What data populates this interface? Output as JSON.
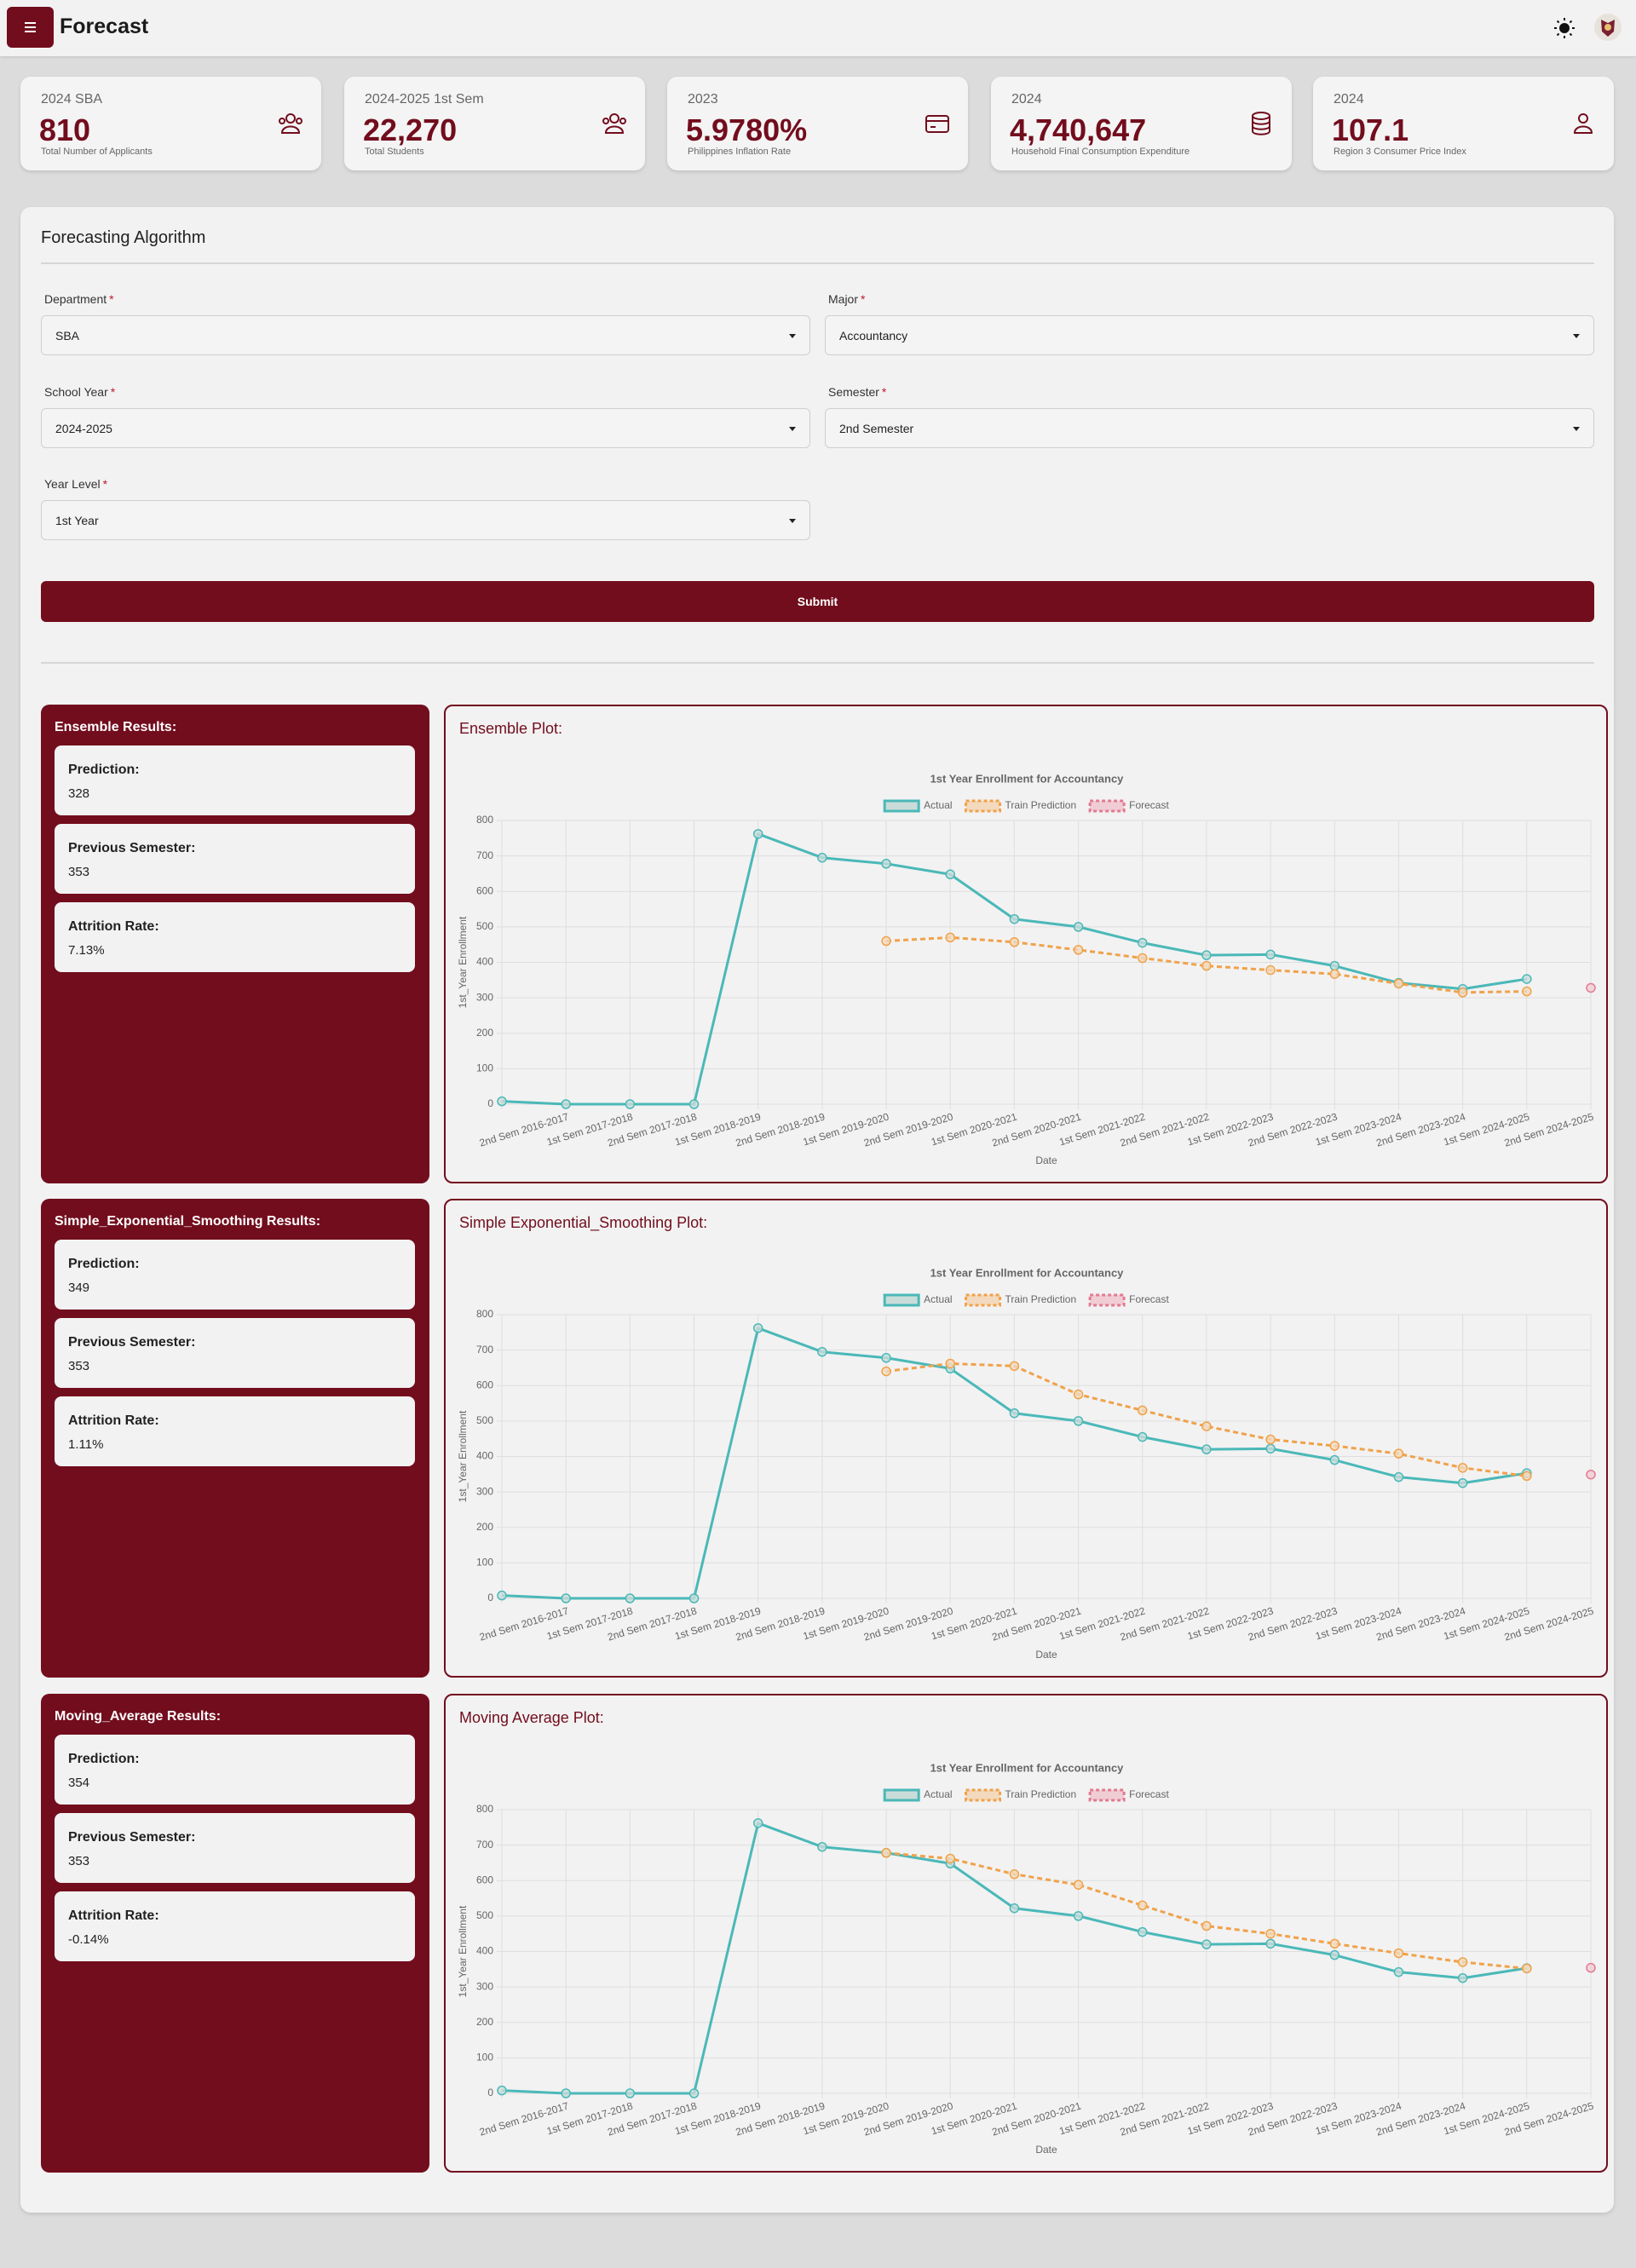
{
  "header": {
    "title": "Forecast"
  },
  "stats": [
    {
      "label": "2024 SBA",
      "value": "810",
      "caption": "Total Number of Applicants"
    },
    {
      "label": "2024-2025 1st Sem",
      "value": "22,270",
      "caption": "Total Students"
    },
    {
      "label": "2023",
      "value": "5.9780%",
      "caption": "Philippines Inflation Rate"
    },
    {
      "label": "2024",
      "value": "4,740,647",
      "caption": "Household Final Consumption Expenditure"
    },
    {
      "label": "2024",
      "value": "107.1",
      "caption": "Region 3 Consumer Price Index"
    }
  ],
  "form": {
    "title": "Forecasting Algorithm",
    "required_mark": "*",
    "fields": [
      {
        "label": "Department",
        "value": "SBA"
      },
      {
        "label": "Major",
        "value": "Accountancy"
      },
      {
        "label": "School Year",
        "value": "2024-2025"
      },
      {
        "label": "Semester",
        "value": "2nd Semester"
      },
      {
        "label": "Year Level",
        "value": "1st Year"
      }
    ],
    "submit": "Submit"
  },
  "results": [
    {
      "title": "Ensemble Results:",
      "plot_title": "Ensemble Plot:",
      "items": [
        {
          "label": "Prediction:",
          "value": "328"
        },
        {
          "label": "Previous Semester:",
          "value": "353"
        },
        {
          "label": "Attrition Rate:",
          "value": "7.13%"
        }
      ]
    },
    {
      "title": "Simple_Exponential_Smoothing Results:",
      "plot_title": "Simple Exponential_Smoothing Plot:",
      "items": [
        {
          "label": "Prediction:",
          "value": "349"
        },
        {
          "label": "Previous Semester:",
          "value": "353"
        },
        {
          "label": "Attrition Rate:",
          "value": "1.11%"
        }
      ]
    },
    {
      "title": "Moving_Average Results:",
      "plot_title": "Moving Average Plot:",
      "items": [
        {
          "label": "Prediction:",
          "value": "354"
        },
        {
          "label": "Previous Semester:",
          "value": "353"
        },
        {
          "label": "Attrition Rate:",
          "value": "-0.14%"
        }
      ]
    }
  ],
  "chart_data": [
    {
      "type": "line",
      "title": "1st Year Enrollment for Accountancy",
      "x_label": "Date",
      "y_label": "1st_Year Enrollment",
      "categories": [
        null,
        "2nd Sem 2016-2017",
        "1st Sem 2017-2018",
        "2nd Sem 2017-2018",
        "1st Sem 2018-2019",
        "2nd Sem 2018-2019",
        "1st Sem 2019-2020",
        "2nd Sem 2019-2020",
        "1st Sem 2020-2021",
        "2nd Sem 2020-2021",
        "1st Sem 2021-2022",
        "2nd Sem 2021-2022",
        "1st Sem 2022-2023",
        "2nd Sem 2022-2023",
        "1st Sem 2023-2024",
        "2nd Sem 2023-2024",
        "1st Sem 2024-2025",
        "2nd Sem 2024-2025"
      ],
      "ylim": [
        0,
        800
      ],
      "yticks": [
        0,
        100,
        200,
        300,
        400,
        500,
        600,
        700,
        800
      ],
      "grid": true,
      "legend": "top",
      "series": [
        {
          "name": "Actual",
          "color": "#4bb8b8",
          "fill": "#c9dcd9",
          "dashed": false,
          "values": [
            8,
            0,
            0,
            0,
            762,
            695,
            678,
            648,
            522,
            500,
            455,
            420,
            422,
            390,
            342,
            325,
            353,
            null
          ]
        },
        {
          "name": "Train Prediction",
          "color": "#f0a24a",
          "fill": "#f3d9bd",
          "dashed": true,
          "values": [
            null,
            null,
            null,
            null,
            null,
            null,
            460,
            470,
            457,
            435,
            412,
            390,
            378,
            367,
            340,
            315,
            318,
            null
          ]
        },
        {
          "name": "Forecast",
          "color": "#e27a92",
          "fill": "#f0cdd5",
          "dashed": true,
          "values": [
            null,
            null,
            null,
            null,
            null,
            null,
            null,
            null,
            null,
            null,
            null,
            null,
            null,
            null,
            null,
            null,
            null,
            328
          ]
        }
      ]
    },
    {
      "type": "line",
      "title": "1st Year Enrollment for Accountancy",
      "x_label": "Date",
      "y_label": "1st_Year Enrollment",
      "categories": [
        null,
        "2nd Sem 2016-2017",
        "1st Sem 2017-2018",
        "2nd Sem 2017-2018",
        "1st Sem 2018-2019",
        "2nd Sem 2018-2019",
        "1st Sem 2019-2020",
        "2nd Sem 2019-2020",
        "1st Sem 2020-2021",
        "2nd Sem 2020-2021",
        "1st Sem 2021-2022",
        "2nd Sem 2021-2022",
        "1st Sem 2022-2023",
        "2nd Sem 2022-2023",
        "1st Sem 2023-2024",
        "2nd Sem 2023-2024",
        "1st Sem 2024-2025",
        "2nd Sem 2024-2025"
      ],
      "ylim": [
        0,
        800
      ],
      "yticks": [
        0,
        100,
        200,
        300,
        400,
        500,
        600,
        700,
        800
      ],
      "grid": true,
      "legend": "top",
      "series": [
        {
          "name": "Actual",
          "color": "#4bb8b8",
          "fill": "#c9dcd9",
          "dashed": false,
          "values": [
            8,
            0,
            0,
            0,
            762,
            695,
            678,
            648,
            522,
            500,
            455,
            420,
            422,
            390,
            342,
            325,
            353,
            null
          ]
        },
        {
          "name": "Train Prediction",
          "color": "#f0a24a",
          "fill": "#f3d9bd",
          "dashed": true,
          "values": [
            null,
            null,
            null,
            null,
            null,
            null,
            640,
            662,
            655,
            575,
            530,
            485,
            448,
            430,
            408,
            368,
            345,
            null
          ]
        },
        {
          "name": "Forecast",
          "color": "#e27a92",
          "fill": "#f0cdd5",
          "dashed": true,
          "values": [
            null,
            null,
            null,
            null,
            null,
            null,
            null,
            null,
            null,
            null,
            null,
            null,
            null,
            null,
            null,
            null,
            null,
            349
          ]
        }
      ]
    },
    {
      "type": "line",
      "title": "1st Year Enrollment for Accountancy",
      "x_label": "Date",
      "y_label": "1st_Year Enrollment",
      "categories": [
        null,
        "2nd Sem 2016-2017",
        "1st Sem 2017-2018",
        "2nd Sem 2017-2018",
        "1st Sem 2018-2019",
        "2nd Sem 2018-2019",
        "1st Sem 2019-2020",
        "2nd Sem 2019-2020",
        "1st Sem 2020-2021",
        "2nd Sem 2020-2021",
        "1st Sem 2021-2022",
        "2nd Sem 2021-2022",
        "1st Sem 2022-2023",
        "2nd Sem 2022-2023",
        "1st Sem 2023-2024",
        "2nd Sem 2023-2024",
        "1st Sem 2024-2025",
        "2nd Sem 2024-2025"
      ],
      "ylim": [
        0,
        800
      ],
      "yticks": [
        0,
        100,
        200,
        300,
        400,
        500,
        600,
        700,
        800
      ],
      "grid": true,
      "legend": "top",
      "series": [
        {
          "name": "Actual",
          "color": "#4bb8b8",
          "fill": "#c9dcd9",
          "dashed": false,
          "values": [
            8,
            0,
            0,
            0,
            762,
            695,
            678,
            648,
            522,
            500,
            455,
            420,
            422,
            390,
            342,
            325,
            353,
            null
          ]
        },
        {
          "name": "Train Prediction",
          "color": "#f0a24a",
          "fill": "#f3d9bd",
          "dashed": true,
          "values": [
            null,
            null,
            null,
            null,
            null,
            null,
            678,
            662,
            618,
            588,
            530,
            472,
            450,
            422,
            395,
            370,
            352,
            null
          ]
        },
        {
          "name": "Forecast",
          "color": "#e27a92",
          "fill": "#f0cdd5",
          "dashed": true,
          "values": [
            null,
            null,
            null,
            null,
            null,
            null,
            null,
            null,
            null,
            null,
            null,
            null,
            null,
            null,
            null,
            null,
            null,
            354
          ]
        }
      ]
    }
  ]
}
